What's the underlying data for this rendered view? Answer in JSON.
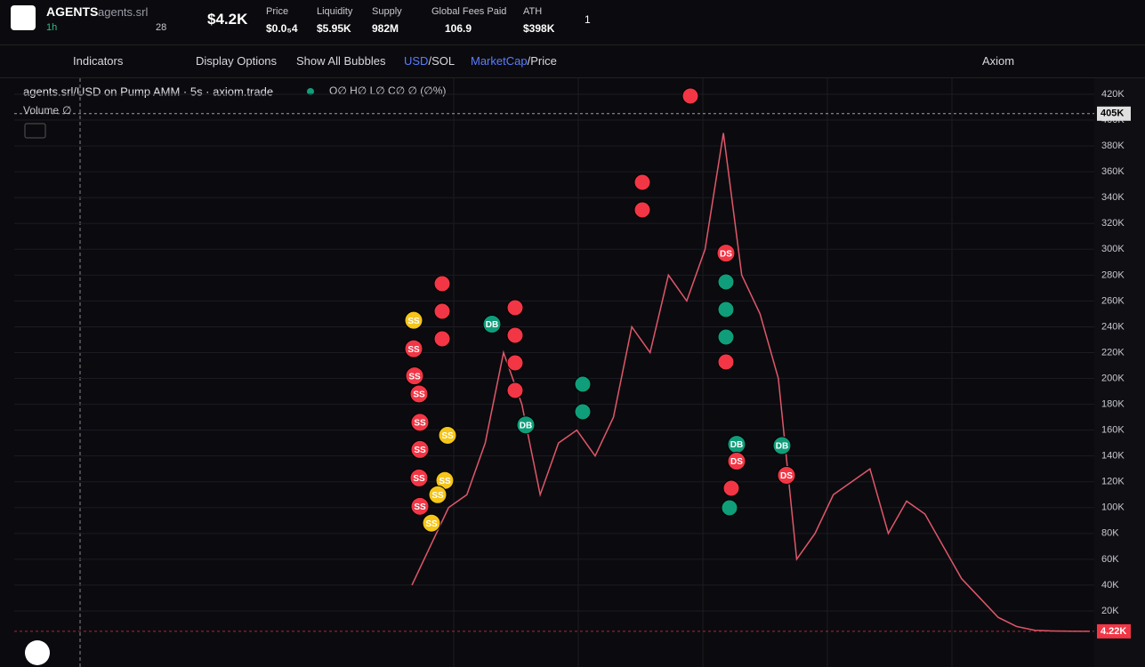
{
  "header": {
    "symbol": "AGENTS",
    "ticker": "agents.srl",
    "timeframe": "1h",
    "watchers": "28",
    "market_cap": "$4.2K",
    "stats": [
      {
        "label": "Price",
        "value": "$0.0₅4"
      },
      {
        "label": "Liquidity",
        "value": "$5.95K"
      },
      {
        "label": "Supply",
        "value": "982M"
      },
      {
        "label": "Global Fees Paid",
        "value": "106.9"
      },
      {
        "label": "ATH",
        "value": "$398K"
      }
    ],
    "holders_badge": "1"
  },
  "toolbar": {
    "indicators": "Indicators",
    "display_options": "Display Options",
    "bubbles": "Show All Bubbles",
    "currency": "USD",
    "currency_alt": "/SOL",
    "mode": "MarketCap",
    "mode_alt": "/Price",
    "source": "Axiom"
  },
  "chart_data": {
    "type": "line",
    "title": "agents.srl/USD on Pump AMM · 5s · axiom.trade",
    "ohlc": "O∅ H∅ L∅ C∅ ∅ (∅%)",
    "volume_label": "Volume",
    "volume_value": "∅",
    "color": "#e0576a",
    "values": [
      40000,
      70000,
      100000,
      110000,
      150000,
      220000,
      180000,
      110000,
      150000,
      160000,
      140000,
      170000,
      240000,
      220000,
      280000,
      260000,
      300000,
      390000,
      280000,
      250000,
      200000,
      60000,
      80000,
      110000,
      120000,
      130000,
      80000,
      105000,
      95000,
      70000,
      45000,
      30000,
      15000,
      8000,
      5000,
      4500,
      4300,
      4220
    ],
    "ylim": [
      -23400,
      432400
    ],
    "yticks": [
      {
        "value": 20000,
        "label": "20K"
      },
      {
        "value": 40000,
        "label": "40K"
      },
      {
        "value": 60000,
        "label": "60K"
      },
      {
        "value": 80000,
        "label": "80K"
      },
      {
        "value": 100000,
        "label": "100K"
      },
      {
        "value": 120000,
        "label": "120K"
      },
      {
        "value": 140000,
        "label": "140K"
      },
      {
        "value": 160000,
        "label": "160K"
      },
      {
        "value": 180000,
        "label": "180K"
      },
      {
        "value": 200000,
        "label": "200K"
      },
      {
        "value": 220000,
        "label": "220K"
      },
      {
        "value": 240000,
        "label": "240K"
      },
      {
        "value": 260000,
        "label": "260K"
      },
      {
        "value": 280000,
        "label": "280K"
      },
      {
        "value": 300000,
        "label": "300K"
      },
      {
        "value": 320000,
        "label": "320K"
      },
      {
        "value": 340000,
        "label": "340K"
      },
      {
        "value": 360000,
        "label": "360K"
      },
      {
        "value": 380000,
        "label": "380K"
      },
      {
        "value": 400000,
        "label": "400K"
      },
      {
        "value": 420000,
        "label": "420K"
      }
    ],
    "grid": true,
    "reference_lines": [
      {
        "value": 405000,
        "label": "405K",
        "color": "#e0e0e0"
      },
      {
        "value": 4220,
        "label": "4.22K",
        "color": "#f23645"
      }
    ],
    "bubbles": [
      {
        "label": "SS",
        "value": 245000,
        "color": "#f5c518"
      },
      {
        "label": "SS",
        "value": 223000,
        "color": "#f23645"
      },
      {
        "label": "SS",
        "value": 202000,
        "color": "#f23645"
      },
      {
        "label": "SS",
        "value": 188000,
        "color": "#f23645"
      },
      {
        "label": "SS",
        "value": 166000,
        "color": "#f23645"
      },
      {
        "label": "SS",
        "value": 145000,
        "color": "#f23645"
      },
      {
        "label": "SS",
        "value": 123000,
        "color": "#f23645"
      },
      {
        "label": "SS",
        "value": 101000,
        "color": "#f23645"
      },
      {
        "label": "SS",
        "value": 156000,
        "color": "#f5c518"
      },
      {
        "label": "SS",
        "value": 121000,
        "color": "#f5c518"
      },
      {
        "label": "SS",
        "value": 110000,
        "color": "#f5c518"
      },
      {
        "label": "SS",
        "value": 88000,
        "color": "#f5c518"
      },
      {
        "label": "DB",
        "value": 242000,
        "color": "#0f9d7a"
      },
      {
        "label": "DB",
        "value": 164000,
        "color": "#0f9d7a"
      },
      {
        "label": "DS",
        "value": 297000,
        "color": "#f23645"
      },
      {
        "label": "DB",
        "value": 149000,
        "color": "#0f9d7a"
      },
      {
        "label": "DS",
        "value": 136000,
        "color": "#f23645"
      },
      {
        "label": "DB",
        "value": 148000,
        "color": "#0f9d7a"
      },
      {
        "label": "DS",
        "value": 125000,
        "color": "#f23645"
      }
    ]
  }
}
